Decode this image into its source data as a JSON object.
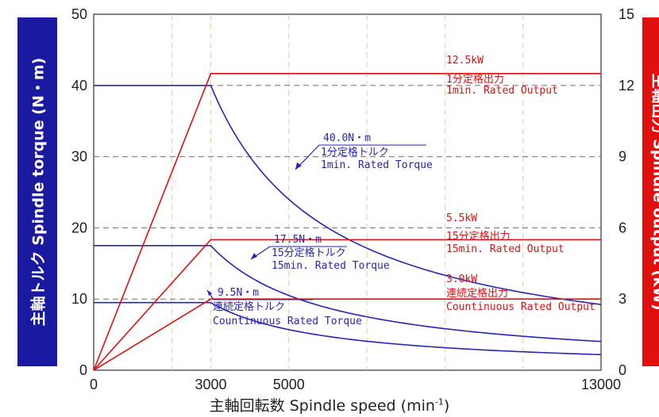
{
  "chart_data": {
    "type": "line",
    "xlabel": "主軸回転数 Spindle speed",
    "xlabel_unit": "(min",
    "xlabel_unit_sup": "-1",
    "xlabel_unit_close": ")",
    "ylabel_left": "主軸トルク Spindle torque (N・m)",
    "ylabel_right": "主軸出力 Spindle output (kW)",
    "x_ticks": [
      0,
      3000,
      5000,
      13000
    ],
    "x_tick_labels": [
      "0",
      "3000",
      "5000",
      "13000"
    ],
    "y_left_ticks": [
      0,
      10,
      20,
      30,
      40,
      50
    ],
    "y_left_tick_labels": [
      "0",
      "10",
      "20",
      "30",
      "40",
      "50"
    ],
    "y_right_ticks": [
      0,
      3,
      6,
      9,
      12,
      15
    ],
    "y_right_tick_labels": [
      "0",
      "3",
      "6",
      "9",
      "12",
      "15"
    ],
    "xlim": [
      0,
      13000
    ],
    "ylim_left": [
      0,
      50
    ],
    "ylim_right": [
      0,
      15
    ],
    "base_speed": 3000,
    "grid": true,
    "torque_series": [
      {
        "rating": "1min",
        "value": 40.0,
        "color": "#2626b4"
      },
      {
        "rating": "15min",
        "value": 17.5,
        "color": "#2626b4"
      },
      {
        "rating": "continuous",
        "value": 9.5,
        "color": "#2626b4"
      }
    ],
    "output_series": [
      {
        "rating": "1min",
        "value": 12.5,
        "color": "#e01010"
      },
      {
        "rating": "15min",
        "value": 5.5,
        "color": "#e01010"
      },
      {
        "rating": "continuous",
        "value": 3.0,
        "color": "#e01010"
      }
    ],
    "annotations": {
      "torque_1min": {
        "value": "40.0N・m",
        "jp": "1分定格トルク",
        "en": "1min. Rated Torque"
      },
      "torque_15min": {
        "value": "17.5N・m",
        "jp": "15分定格トルク",
        "en": "15min. Rated Torque"
      },
      "torque_cont": {
        "value": "9.5N・m",
        "jp": "連続定格トルク",
        "en": "Countinuous Rated Torque"
      },
      "output_1min": {
        "value": "12.5kW",
        "jp": "1分定格出力",
        "en": "1min. Rated Output"
      },
      "output_15min": {
        "value": "5.5kW",
        "jp": "15分定格出力",
        "en": "15min.  Rated Output"
      },
      "output_cont": {
        "value": "3.0kW",
        "jp": "連続定格出力",
        "en": "Countinuous Rated Output"
      }
    },
    "colors": {
      "torque": "#2626b4",
      "output": "#e01010",
      "left_band": "#1a1aa0",
      "right_band": "#e01010"
    }
  }
}
